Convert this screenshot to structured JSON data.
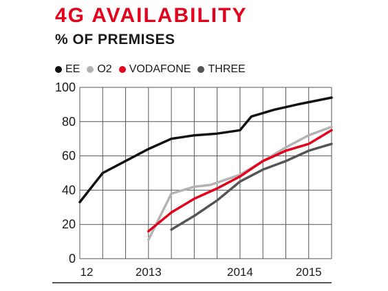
{
  "header": {
    "title": "4G AVAILABILITY",
    "subtitle": "% OF PREMISES"
  },
  "chart_data": {
    "type": "line",
    "title": "4G AVAILABILITY",
    "subtitle": "% OF PREMISES",
    "xlabel": "",
    "ylabel": "",
    "ylim": [
      0,
      100
    ],
    "y_ticks": [
      "0",
      "20",
      "40",
      "60",
      "80",
      "100"
    ],
    "x_ticks": [
      {
        "label": "12",
        "x": 0.3
      },
      {
        "label": "2013",
        "x": 3.0
      },
      {
        "label": "2014",
        "x": 7.0
      },
      {
        "label": "2015",
        "x": 10.0
      }
    ],
    "x_range": [
      0,
      11
    ],
    "grid": true,
    "legend_position": "top",
    "series": [
      {
        "name": "EE",
        "color": "#111111",
        "points": [
          [
            0,
            33
          ],
          [
            1,
            50
          ],
          [
            2,
            57
          ],
          [
            3,
            64
          ],
          [
            4,
            70
          ],
          [
            5,
            72
          ],
          [
            6,
            73
          ],
          [
            7,
            75
          ],
          [
            7.5,
            83
          ],
          [
            8.5,
            87
          ],
          [
            9.5,
            90
          ],
          [
            11,
            94
          ]
        ]
      },
      {
        "name": "O2",
        "color": "#b3b3b3",
        "points": [
          [
            3,
            11
          ],
          [
            4,
            38
          ],
          [
            5,
            42
          ],
          [
            5.7,
            43
          ],
          [
            7,
            49
          ],
          [
            8,
            57
          ],
          [
            9,
            65
          ],
          [
            10,
            72
          ],
          [
            11,
            77
          ]
        ]
      },
      {
        "name": "VODAFONE",
        "color": "#e3001b",
        "points": [
          [
            3,
            16
          ],
          [
            4,
            27
          ],
          [
            5,
            35
          ],
          [
            6,
            41
          ],
          [
            7,
            48
          ],
          [
            8,
            57
          ],
          [
            9,
            63
          ],
          [
            10,
            67
          ],
          [
            11,
            75
          ]
        ]
      },
      {
        "name": "THREE",
        "color": "#555555",
        "points": [
          [
            4,
            17
          ],
          [
            5,
            25
          ],
          [
            6,
            34
          ],
          [
            7,
            45
          ],
          [
            8,
            52
          ],
          [
            9,
            57
          ],
          [
            10,
            63
          ],
          [
            11,
            67
          ]
        ]
      }
    ]
  }
}
